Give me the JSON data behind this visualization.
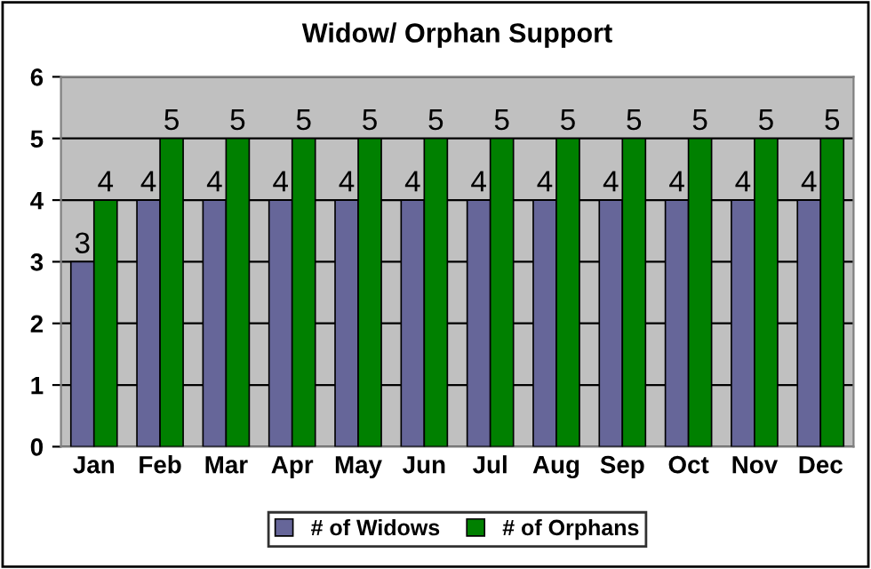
{
  "chart_data": {
    "type": "bar",
    "title": "Widow/ Orphan Support",
    "categories": [
      "Jan",
      "Feb",
      "Mar",
      "Apr",
      "May",
      "Jun",
      "Jul",
      "Aug",
      "Sep",
      "Oct",
      "Nov",
      "Dec"
    ],
    "series": [
      {
        "name": "# of Widows",
        "color": "#666699",
        "values": [
          3,
          4,
          4,
          4,
          4,
          4,
          4,
          4,
          4,
          4,
          4,
          4
        ]
      },
      {
        "name": "# of Orphans",
        "color": "#008000",
        "values": [
          4,
          5,
          5,
          5,
          5,
          5,
          5,
          5,
          5,
          5,
          5,
          5
        ]
      }
    ],
    "ylim": [
      0,
      6
    ],
    "yticks": [
      0,
      1,
      2,
      3,
      4,
      5,
      6
    ],
    "grid": "y",
    "legend": "bottom",
    "data_labels": true
  }
}
